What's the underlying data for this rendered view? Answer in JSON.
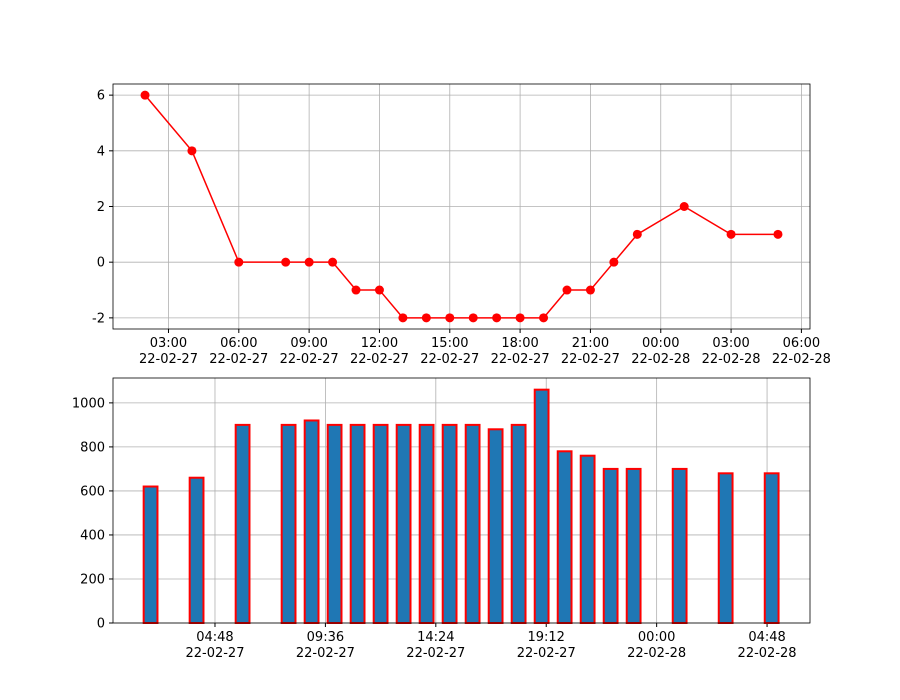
{
  "chart_data": [
    {
      "type": "line",
      "x": [
        "22-02-27 02:00",
        "22-02-27 04:00",
        "22-02-27 06:00",
        "22-02-27 08:00",
        "22-02-27 09:00",
        "22-02-27 10:00",
        "22-02-27 11:00",
        "22-02-27 12:00",
        "22-02-27 13:00",
        "22-02-27 14:00",
        "22-02-27 15:00",
        "22-02-27 16:00",
        "22-02-27 17:00",
        "22-02-27 18:00",
        "22-02-27 19:00",
        "22-02-27 20:00",
        "22-02-27 21:00",
        "22-02-27 22:00",
        "22-02-27 23:00",
        "22-02-28 01:00",
        "22-02-28 03:00",
        "22-02-28 05:00"
      ],
      "series": [
        {
          "color": "#ff0000",
          "values": [
            6,
            4,
            0,
            0,
            0,
            0,
            -1,
            -1,
            -2,
            -2,
            -2,
            -2,
            -2,
            -2,
            -2,
            -1,
            -1,
            0,
            1,
            2,
            1,
            1
          ]
        }
      ],
      "xlim": [
        "22-02-27 00:38",
        "22-02-28 06:22"
      ],
      "xticks": [
        {
          "value": "22-02-27 03:00",
          "label": "03:00\n22-02-27"
        },
        {
          "value": "22-02-27 06:00",
          "label": "06:00\n22-02-27"
        },
        {
          "value": "22-02-27 09:00",
          "label": "09:00\n22-02-27"
        },
        {
          "value": "22-02-27 12:00",
          "label": "12:00\n22-02-27"
        },
        {
          "value": "22-02-27 15:00",
          "label": "15:00\n22-02-27"
        },
        {
          "value": "22-02-27 18:00",
          "label": "18:00\n22-02-27"
        },
        {
          "value": "22-02-27 21:00",
          "label": "21:00\n22-02-27"
        },
        {
          "value": "22-02-28 00:00",
          "label": "00:00\n22-02-28"
        },
        {
          "value": "22-02-28 03:00",
          "label": "03:00\n22-02-28"
        },
        {
          "value": "22-02-28 06:00",
          "label": "06:00\n22-02-28"
        }
      ],
      "ylim": [
        -2.4,
        6.4
      ],
      "yticks": [
        -2,
        0,
        2,
        4,
        6
      ],
      "grid": true
    },
    {
      "type": "bar",
      "x": [
        "22-02-27 02:00",
        "22-02-27 04:00",
        "22-02-27 06:00",
        "22-02-27 08:00",
        "22-02-27 09:00",
        "22-02-27 10:00",
        "22-02-27 11:00",
        "22-02-27 12:00",
        "22-02-27 13:00",
        "22-02-27 14:00",
        "22-02-27 15:00",
        "22-02-27 16:00",
        "22-02-27 17:00",
        "22-02-27 18:00",
        "22-02-27 19:00",
        "22-02-27 20:00",
        "22-02-27 21:00",
        "22-02-27 22:00",
        "22-02-27 23:00",
        "22-02-28 01:00",
        "22-02-28 03:00",
        "22-02-28 05:00"
      ],
      "series": [
        {
          "color": "#1f77b4",
          "edgecolor": "#ff0000",
          "values": [
            620,
            660,
            900,
            900,
            920,
            900,
            900,
            900,
            900,
            900,
            900,
            900,
            880,
            900,
            1060,
            780,
            760,
            700,
            700,
            700,
            680,
            680
          ]
        }
      ],
      "xlim": [
        "22-02-27 00:22",
        "22-02-28 06:40"
      ],
      "xticks": [
        {
          "value": "22-02-27 04:48",
          "label": "04:48\n22-02-27"
        },
        {
          "value": "22-02-27 09:36",
          "label": "09:36\n22-02-27"
        },
        {
          "value": "22-02-27 14:24",
          "label": "14:24\n22-02-27"
        },
        {
          "value": "22-02-27 19:12",
          "label": "19:12\n22-02-27"
        },
        {
          "value": "22-02-28 00:00",
          "label": "00:00\n22-02-28"
        },
        {
          "value": "22-02-28 04:48",
          "label": "04:48\n22-02-28"
        }
      ],
      "ylim": [
        0,
        1113
      ],
      "yticks": [
        0,
        200,
        400,
        600,
        800,
        1000
      ],
      "grid": true
    }
  ]
}
